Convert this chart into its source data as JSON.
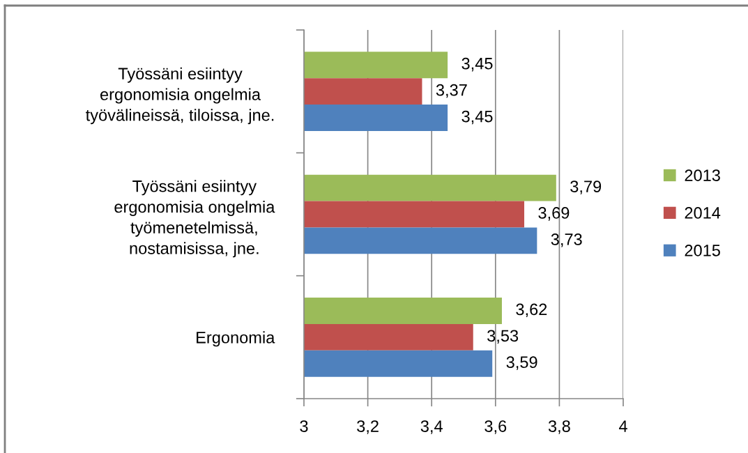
{
  "chart_data": {
    "type": "bar",
    "orientation": "horizontal",
    "categories": [
      "Työssäni esiintyy\nergonomisia ongelmia\ntyövälineissä, tiloissa, jne.",
      "Työssäni esiintyy\nergonomisia ongelmia\ntyömenetelmissä,\nnostamisissa, jne.",
      "Ergonomia"
    ],
    "series": [
      {
        "name": "2013",
        "color": "#9bbb59",
        "values": [
          3.45,
          3.79,
          3.62
        ],
        "value_labels": [
          "3,45",
          "3,79",
          "3,62"
        ]
      },
      {
        "name": "2014",
        "color": "#c0504d",
        "values": [
          3.37,
          3.69,
          3.53
        ],
        "value_labels": [
          "3,37",
          "3,69",
          "3,53"
        ]
      },
      {
        "name": "2015",
        "color": "#4f81bd",
        "values": [
          3.45,
          3.73,
          3.59
        ],
        "value_labels": [
          "3,45",
          "3,73",
          "3,59"
        ]
      }
    ],
    "xlim": [
      3,
      4
    ],
    "xticks": [
      3,
      {
        "value": 3.2,
        "label": "3,2"
      },
      {
        "value": 3.4,
        "label": "3,4"
      },
      {
        "value": 3.6,
        "label": "3,6"
      },
      {
        "value": 3.8,
        "label": "3,8"
      },
      4
    ],
    "grid": "x",
    "legend": "right"
  }
}
